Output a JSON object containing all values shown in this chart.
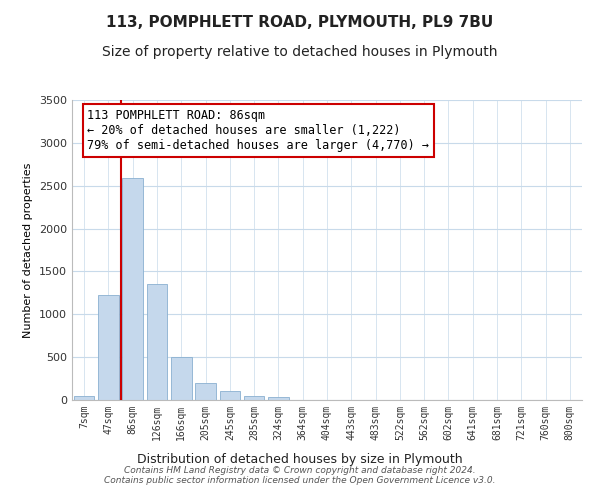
{
  "title": "113, POMPHLETT ROAD, PLYMOUTH, PL9 7BU",
  "subtitle": "Size of property relative to detached houses in Plymouth",
  "xlabel": "Distribution of detached houses by size in Plymouth",
  "ylabel": "Number of detached properties",
  "bar_labels": [
    "7sqm",
    "47sqm",
    "86sqm",
    "126sqm",
    "166sqm",
    "205sqm",
    "245sqm",
    "285sqm",
    "324sqm",
    "364sqm",
    "404sqm",
    "443sqm",
    "483sqm",
    "522sqm",
    "562sqm",
    "602sqm",
    "641sqm",
    "681sqm",
    "721sqm",
    "760sqm",
    "800sqm"
  ],
  "bar_values": [
    50,
    1230,
    2590,
    1350,
    500,
    200,
    110,
    50,
    30,
    0,
    0,
    0,
    0,
    0,
    0,
    0,
    0,
    0,
    0,
    0,
    0
  ],
  "bar_color": "#c5d8ec",
  "bar_edge_color": "#8ab0d0",
  "marker_line_color": "#cc0000",
  "ylim": [
    0,
    3500
  ],
  "annotation_title": "113 POMPHLETT ROAD: 86sqm",
  "annotation_line1": "← 20% of detached houses are smaller (1,222)",
  "annotation_line2": "79% of semi-detached houses are larger (4,770) →",
  "annotation_box_color": "#ffffff",
  "annotation_box_edge": "#cc0000",
  "footer_line1": "Contains HM Land Registry data © Crown copyright and database right 2024.",
  "footer_line2": "Contains public sector information licensed under the Open Government Licence v3.0.",
  "background_color": "#ffffff",
  "grid_color": "#c8daea",
  "title_fontsize": 11,
  "subtitle_fontsize": 10,
  "yticks": [
    0,
    500,
    1000,
    1500,
    2000,
    2500,
    3000,
    3500
  ]
}
